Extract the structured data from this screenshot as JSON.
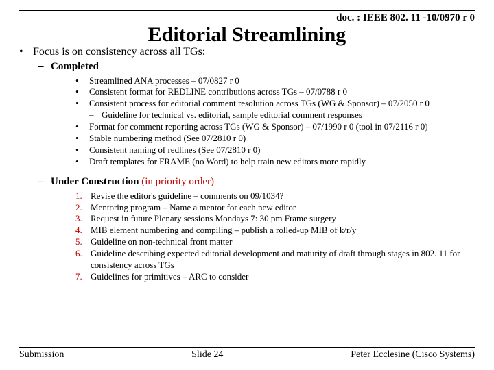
{
  "header": {
    "doc_ref": "doc. : IEEE 802. 11 -10/0970 r 0"
  },
  "title": "Editorial Streamlining",
  "topline": "Focus is on consistency across all TGs:",
  "completed": {
    "label": "Completed",
    "items": [
      "Streamlined ANA processes – 07/0827 r 0",
      "Consistent format for REDLINE contributions across TGs – 07/0788 r 0",
      "Consistent process for editorial comment resolution across TGs (WG & Sponsor) – 07/2050 r 0",
      "Format for comment reporting across TGs (WG & Sponsor) – 07/1990 r 0 (tool in 07/2116 r 0)",
      "Stable numbering method (See 07/2810 r 0)",
      "Consistent naming of redlines (See 07/2810 r 0)",
      "Draft templates for FRAME (no Word) to help train new editors more rapidly"
    ],
    "sub_after_index": 2,
    "sub_item": "Guideline for technical vs. editorial, sample editorial comment responses"
  },
  "under_construction": {
    "label_main": "Under Construction",
    "label_priority": "(in priority order)",
    "items": [
      "Revise the editor's guideline – comments on 09/1034?",
      "Mentoring program – Name a mentor for each new editor",
      "Request in future Plenary sessions Mondays 7: 30 pm Frame surgery",
      "MIB element numbering and compiling – publish a rolled-up MIB of k/r/y",
      "Guideline on non-technical front matter",
      "Guideline describing expected editorial development and maturity of draft through stages in 802. 11 for consistency across TGs",
      "Guidelines for primitives – ARC to consider"
    ]
  },
  "footer": {
    "left": "Submission",
    "center": "Slide 24",
    "right": "Peter Ecclesine (Cisco Systems)"
  }
}
